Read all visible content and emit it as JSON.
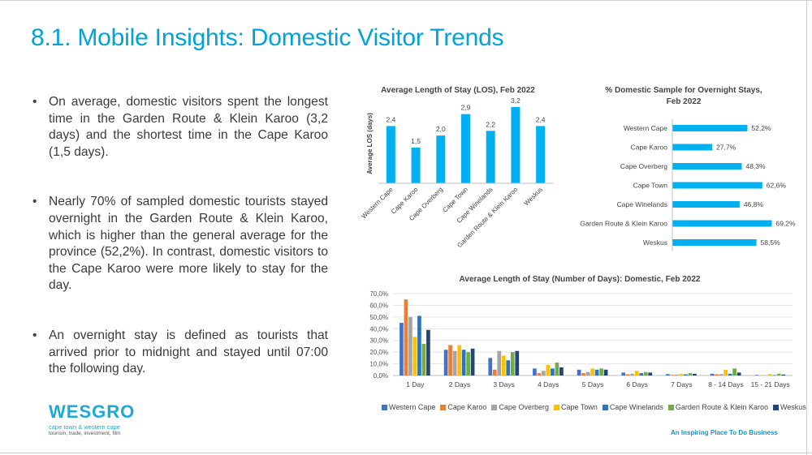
{
  "page": {
    "title": "8.1. Mobile Insights: Domestic Visitor Trends",
    "bullets": [
      "On average, domestic visitors spent the longest time in the Garden Route & Klein Karoo (3,2 days) and the shortest time in the Cape Karoo (1,5 days).",
      "Nearly 70% of sampled domestic tourists stayed overnight in the Garden Route & Klein Karoo, which is higher than the general average for the province (52,2%). In contrast, domestic visitors to the Cape Karoo were more likely to stay for the day.",
      "An overnight stay is defined as tourists that arrived prior to midnight and stayed until 07:00 the following day."
    ],
    "logo": {
      "name": "wesgro",
      "line1": "cape town & western cape",
      "line2": "tourism, trade, investment, film"
    },
    "tagline": "An Inspiring Place To Do Business"
  },
  "colors": {
    "title": "#00a3d9",
    "bar": "#00b0f0",
    "series": [
      "#4472c4",
      "#ed7d31",
      "#a5a5a5",
      "#ffc000",
      "#2e75b6",
      "#70ad47",
      "#264478"
    ]
  },
  "chart_data": [
    {
      "type": "bar",
      "title": "Average Length of Stay (LOS), Feb 2022",
      "ylabel": "Average LOS (days)",
      "categories": [
        "Western Cape",
        "Cape Karoo",
        "Cape Overberg",
        "Cape Town",
        "Cape Winelands",
        "Garden Route & Klein Karoo",
        "Weskus"
      ],
      "values": [
        2.4,
        1.5,
        2.0,
        2.9,
        2.2,
        3.2,
        2.4
      ],
      "data_labels": [
        "2,4",
        "1,5",
        "2,0",
        "2,9",
        "2,2",
        "3,2",
        "2,4"
      ],
      "ylim": [
        0,
        3.4
      ],
      "grid": false
    },
    {
      "type": "bar",
      "orientation": "horizontal",
      "title": "% Domestic Sample for Overnight Stays, Feb 2022",
      "categories": [
        "Western Cape",
        "Cape Karoo",
        "Cape Overberg",
        "Cape Town",
        "Cape Winelands",
        "Garden Route & Klein Karoo",
        "Weskus"
      ],
      "values": [
        52.2,
        27.7,
        48.3,
        62.6,
        46.8,
        69.2,
        58.5
      ],
      "data_labels": [
        "52,2%",
        "27,7%",
        "48,3%",
        "62,6%",
        "46,8%",
        "69,2%",
        "58,5%"
      ],
      "xlim": [
        0,
        100
      ],
      "grid": false
    },
    {
      "type": "bar",
      "title": "Average Length of Stay (Number of Days): Domestic, Feb 2022",
      "categories": [
        "1 Day",
        "2 Days",
        "3 Days",
        "4 Days",
        "5 Days",
        "6 Days",
        "7 Days",
        "8 - 14 Days",
        "15 - 21 Days"
      ],
      "yticks": [
        "0,0%",
        "10,0%",
        "20,0%",
        "30,0%",
        "40,0%",
        "50,0%",
        "60,0%",
        "70,0%"
      ],
      "ylim": [
        0,
        70
      ],
      "grid": true,
      "legend_position": "bottom",
      "series": [
        {
          "name": "Western Cape",
          "values": [
            45,
            22,
            15,
            6,
            5,
            2.5,
            1.2,
            1.5,
            0.5
          ]
        },
        {
          "name": "Cape Karoo",
          "values": [
            65,
            26,
            5,
            2,
            2,
            1,
            0.5,
            1,
            0.2
          ]
        },
        {
          "name": "Cape Overberg",
          "values": [
            50,
            21,
            21,
            4,
            3,
            1.5,
            0.8,
            1.2,
            0.3
          ]
        },
        {
          "name": "Cape Town",
          "values": [
            33,
            26,
            17,
            9,
            6,
            4,
            1.5,
            5,
            1.2
          ]
        },
        {
          "name": "Cape Winelands",
          "values": [
            51,
            22,
            13,
            6,
            5,
            2,
            1,
            1.5,
            0.4
          ]
        },
        {
          "name": "Garden Route & Klein Karoo",
          "values": [
            27,
            20,
            20,
            11,
            6,
            3,
            2,
            6,
            1.5
          ]
        },
        {
          "name": "Weskus",
          "values": [
            39,
            23,
            21,
            7,
            5,
            2.5,
            1.5,
            2.5,
            0.8
          ]
        }
      ]
    }
  ]
}
